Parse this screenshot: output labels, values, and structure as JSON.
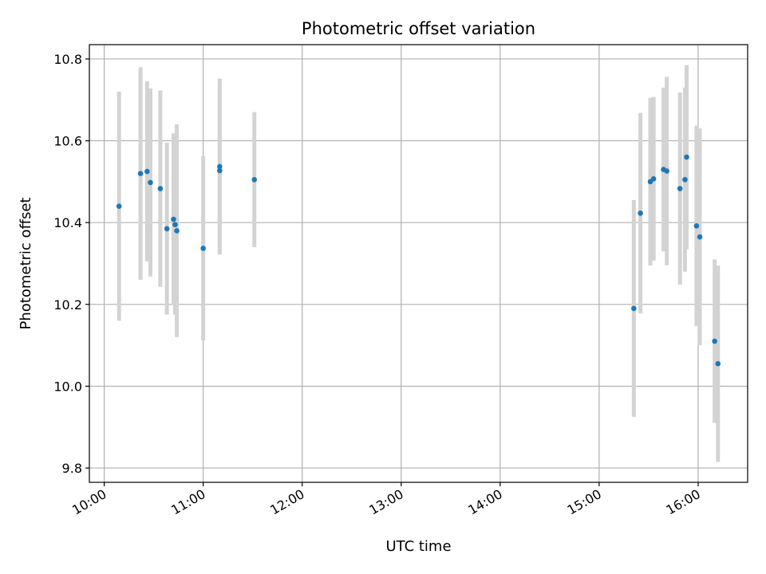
{
  "chart_data": {
    "type": "scatter",
    "title": "Photometric offset variation",
    "xlabel": "UTC time",
    "ylabel": "Photometric offset",
    "xlim": [
      "09:51",
      "16:30"
    ],
    "ylim": [
      9.765,
      10.835
    ],
    "xticks": [
      "10:00",
      "11:00",
      "12:00",
      "13:00",
      "14:00",
      "15:00",
      "16:00"
    ],
    "yticks": [
      9.8,
      10.0,
      10.2,
      10.4,
      10.6,
      10.8
    ],
    "ytick_labels": [
      "9.8",
      "10.0",
      "10.2",
      "10.4",
      "10.6",
      "10.8"
    ],
    "grid": true,
    "colors": {
      "points": "#1f77b4",
      "errorbars": "#d3d3d3",
      "grid": "#b0b0b0"
    },
    "points": [
      {
        "t": "10:09",
        "y": 10.44,
        "err": 0.28
      },
      {
        "t": "10:22",
        "y": 10.52,
        "err": 0.26
      },
      {
        "t": "10:26",
        "y": 10.525,
        "err": 0.22
      },
      {
        "t": "10:28",
        "y": 10.498,
        "err": 0.23
      },
      {
        "t": "10:34",
        "y": 10.483,
        "err": 0.24
      },
      {
        "t": "10:38",
        "y": 10.385,
        "err": 0.21
      },
      {
        "t": "10:42",
        "y": 10.408,
        "err": 0.21
      },
      {
        "t": "10:43",
        "y": 10.395,
        "err": 0.22
      },
      {
        "t": "10:44",
        "y": 10.38,
        "err": 0.26
      },
      {
        "t": "11:00",
        "y": 10.337,
        "err": 0.225
      },
      {
        "t": "11:10",
        "y": 10.537,
        "err": 0.215
      },
      {
        "t": "11:10",
        "y": 10.527,
        "err": 0.2
      },
      {
        "t": "11:31",
        "y": 10.505,
        "err": 0.165
      },
      {
        "t": "15:21",
        "y": 10.19,
        "err": 0.265
      },
      {
        "t": "15:25",
        "y": 10.423,
        "err": 0.245
      },
      {
        "t": "15:31",
        "y": 10.5,
        "err": 0.205
      },
      {
        "t": "15:33",
        "y": 10.507,
        "err": 0.2
      },
      {
        "t": "15:39",
        "y": 10.53,
        "err": 0.2
      },
      {
        "t": "15:41",
        "y": 10.526,
        "err": 0.23
      },
      {
        "t": "15:49",
        "y": 10.483,
        "err": 0.235
      },
      {
        "t": "15:52",
        "y": 10.505,
        "err": 0.225
      },
      {
        "t": "15:53",
        "y": 10.56,
        "err": 0.225
      },
      {
        "t": "15:59",
        "y": 10.392,
        "err": 0.245
      },
      {
        "t": "16:01",
        "y": 10.365,
        "err": 0.265
      },
      {
        "t": "16:10",
        "y": 10.11,
        "err": 0.2
      },
      {
        "t": "16:12",
        "y": 10.055,
        "err": 0.24
      }
    ]
  }
}
